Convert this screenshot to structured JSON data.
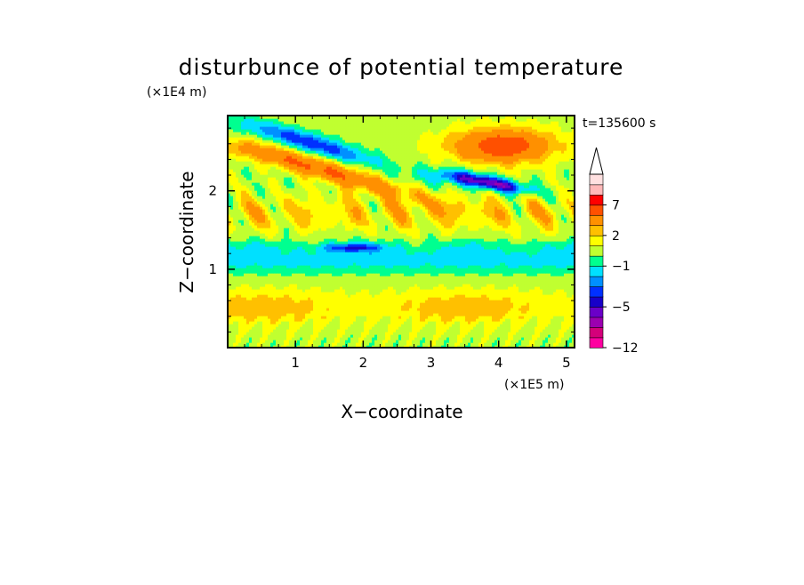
{
  "chart_data": {
    "type": "heatmap",
    "title": "disturbunce of potential temperature",
    "xlabel": "X−coordinate",
    "ylabel": "Z−coordinate",
    "x_scale_label": "(×1E5 m)",
    "y_scale_label": "(×1E4 m)",
    "time_label": "t=135600 s",
    "xlim": [
      0,
      5.12
    ],
    "ylim": [
      0,
      2.96
    ],
    "x_ticks": [
      "1",
      "2",
      "3",
      "4",
      "5"
    ],
    "y_ticks": [
      "1",
      "2"
    ],
    "x_tick_values": [
      1,
      2,
      3,
      4,
      5
    ],
    "y_tick_values": [
      1,
      2
    ],
    "colorbar": {
      "labels": [
        "7",
        "2",
        "−1",
        "−5",
        "−12"
      ],
      "label_values": [
        7,
        2,
        -1,
        -5,
        -12
      ],
      "levels": [
        -12,
        -10,
        -8,
        -6,
        -5,
        -4,
        -3,
        -2,
        -1,
        0,
        1,
        2,
        3,
        5,
        7,
        9,
        11
      ],
      "colors": [
        "#ff00a0",
        "#d4007a",
        "#9b00b0",
        "#6a00c8",
        "#1800c8",
        "#0030ff",
        "#0090ff",
        "#00e0ff",
        "#00ff90",
        "#c0ff30",
        "#ffff00",
        "#ffc000",
        "#ff9000",
        "#ff5000",
        "#ff0000",
        "#ffb8b8",
        "#ffe0e0"
      ],
      "extend": "max"
    },
    "grid": false,
    "legend": "right"
  }
}
